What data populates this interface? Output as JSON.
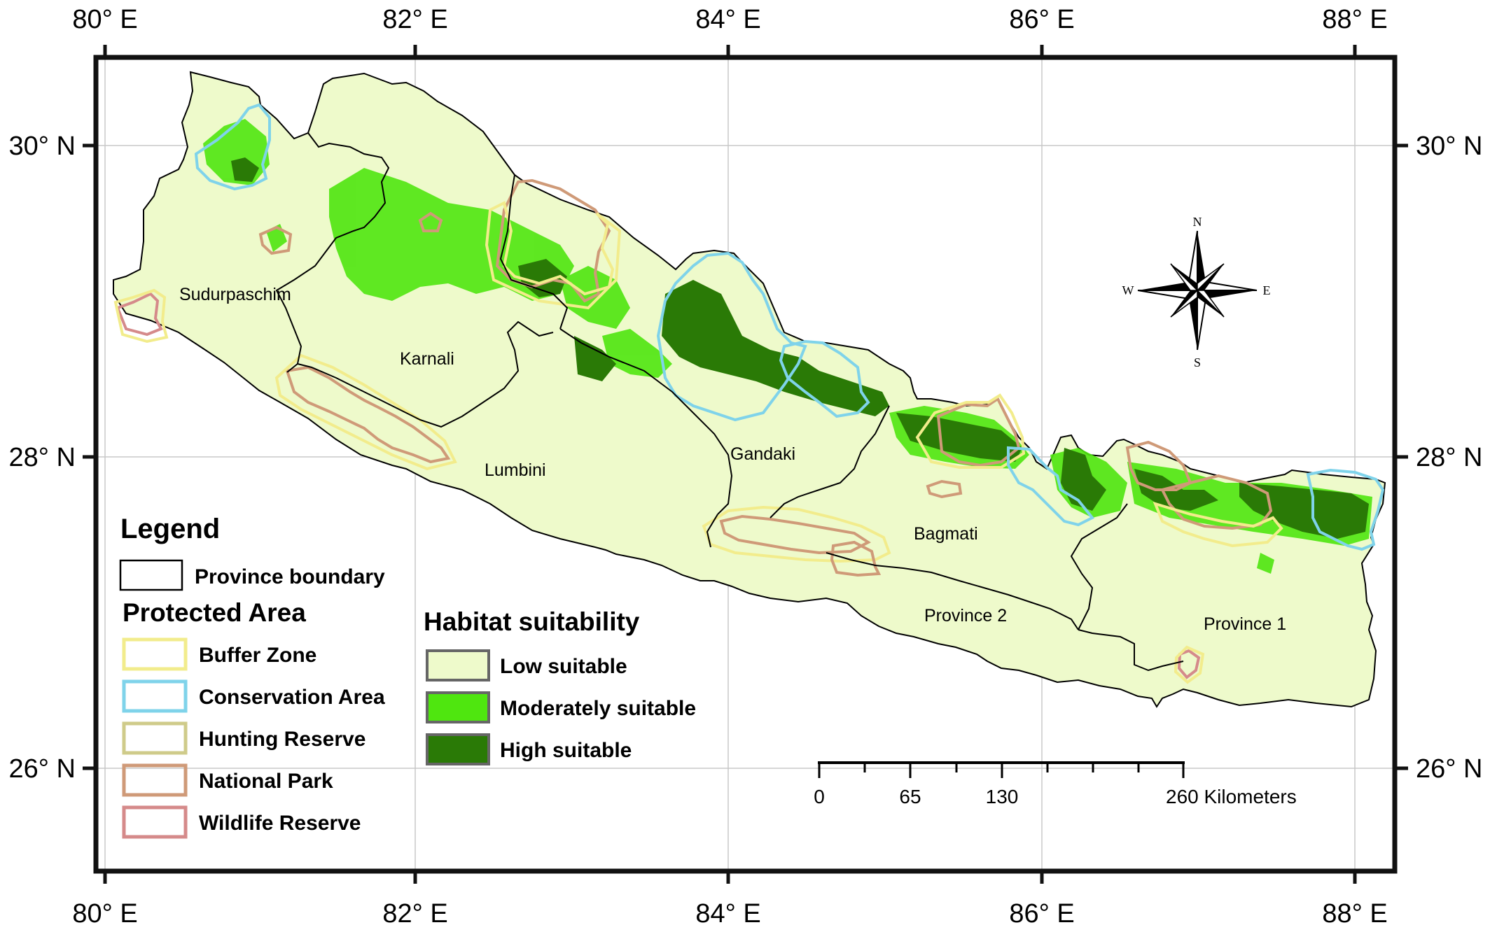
{
  "graticule": {
    "top_labels": [
      "80° E",
      "82° E",
      "84° E",
      "86° E",
      "88° E"
    ],
    "bottom_labels": [
      "80° E",
      "82° E",
      "84° E",
      "86° E",
      "88° E"
    ],
    "left_labels": [
      "30° N",
      "28° N",
      "26° N"
    ],
    "right_labels": [
      "30° N",
      "28° N",
      "26° N"
    ]
  },
  "provinces": [
    "Sudurpaschim",
    "Karnali",
    "Lumbini",
    "Gandaki",
    "Bagmati",
    "Province 2",
    "Province 1"
  ],
  "compass": {
    "n": "N",
    "s": "S",
    "e": "E",
    "w": "W"
  },
  "legend": {
    "title": "Legend",
    "province_boundary": "Province boundary",
    "protected_area_title": "Protected Area",
    "protected_areas": [
      {
        "label": "Buffer Zone",
        "color": "#f2ec8c"
      },
      {
        "label": "Conservation Area",
        "color": "#7fd3ea"
      },
      {
        "label": "Hunting Reserve",
        "color": "#cfcb8a"
      },
      {
        "label": "National Park",
        "color": "#cf9a78"
      },
      {
        "label": "Wildlife Reserve",
        "color": "#d58a8a"
      }
    ],
    "habitat_title": "Habitat suitability",
    "habitat": [
      {
        "label": "Low suitable",
        "color": "#eefacb"
      },
      {
        "label": "Moderately suitable",
        "color": "#4fe60f"
      },
      {
        "label": "High suitable",
        "color": "#2a7a06"
      }
    ]
  },
  "scale_bar": {
    "labels": [
      "0",
      "65",
      "130",
      "260 Kilometers"
    ]
  },
  "colors": {
    "land": "#eefacb",
    "moderate": "#4fe60f",
    "high": "#2a7a06",
    "graticule": "#c8c8c8",
    "frame": "#111111"
  }
}
